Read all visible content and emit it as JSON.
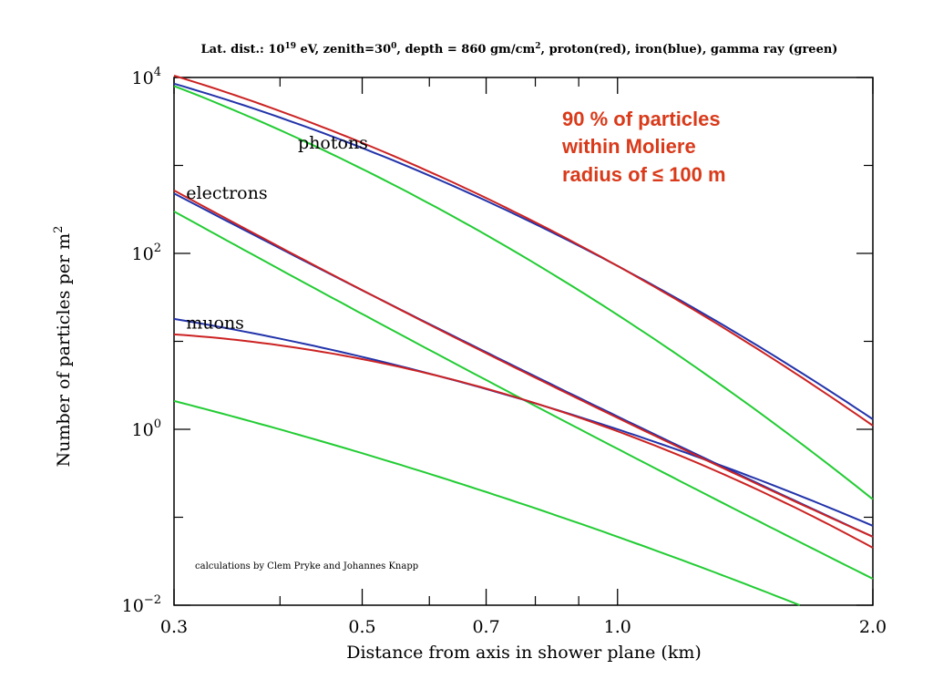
{
  "chart_data": {
    "type": "line",
    "title_parts": {
      "prefix": "Lat. dist.: 10",
      "exp1": "19",
      "mid": " eV, zenith=30",
      "exp2": "0",
      "mid2": ", depth = 860 gm/cm",
      "exp3": "2",
      "suffix": ", proton(red), iron(blue), gamma ray (green)"
    },
    "xlabel": "Distance from axis in shower plane (km)",
    "ylabel": "Number of particles per m",
    "ylabel_sup": "2",
    "x_scale": "log",
    "y_scale": "log",
    "xlim": [
      0.3,
      2.0
    ],
    "ylim": [
      0.01,
      10000
    ],
    "x_ticks": [
      {
        "value": 0.3,
        "label": "0.3"
      },
      {
        "value": 0.5,
        "label": "0.5"
      },
      {
        "value": 0.7,
        "label": "0.7"
      },
      {
        "value": 1.0,
        "label": "1.0"
      },
      {
        "value": 2.0,
        "label": "2.0"
      }
    ],
    "x_minor_ticks": [
      0.4,
      0.6,
      0.8,
      0.9
    ],
    "y_ticks": [
      {
        "value": 0.01,
        "base": "10",
        "exp": "−2"
      },
      {
        "value": 1,
        "base": "10",
        "exp": "0"
      },
      {
        "value": 100,
        "base": "10",
        "exp": "2"
      },
      {
        "value": 10000,
        "base": "10",
        "exp": "4"
      }
    ],
    "y_minor_ticks": [
      0.1,
      10,
      1000
    ],
    "grid": false,
    "legend": "none",
    "colors": {
      "proton": "#cc2222",
      "iron": "#2233aa",
      "gamma": "#22cc33"
    },
    "series": [
      {
        "component": "photons",
        "primary": "proton",
        "x": [
          0.3,
          1.0,
          2.0
        ],
        "y": [
          10500,
          72,
          1.1
        ]
      },
      {
        "component": "photons",
        "primary": "iron",
        "x": [
          0.3,
          1.0,
          2.0
        ],
        "y": [
          8500,
          72,
          1.3
        ]
      },
      {
        "component": "photons",
        "primary": "gamma",
        "x": [
          0.3,
          1.0,
          2.0
        ],
        "y": [
          8000,
          20,
          0.16
        ]
      },
      {
        "component": "electrons",
        "primary": "proton",
        "x": [
          0.3,
          1.0,
          2.0
        ],
        "y": [
          520,
          1.35,
          0.06
        ]
      },
      {
        "component": "electrons",
        "primary": "iron",
        "x": [
          0.3,
          1.0,
          2.0
        ],
        "y": [
          480,
          1.4,
          0.06
        ]
      },
      {
        "component": "electrons",
        "primary": "gamma",
        "x": [
          0.3,
          1.0,
          2.0
        ],
        "y": [
          300,
          0.6,
          0.02
        ]
      },
      {
        "component": "muons",
        "primary": "proton",
        "x": [
          0.3,
          1.0,
          2.0
        ],
        "y": [
          12,
          0.95,
          0.045
        ]
      },
      {
        "component": "muons",
        "primary": "iron",
        "x": [
          0.3,
          1.0,
          2.0
        ],
        "y": [
          18,
          1.0,
          0.08
        ]
      },
      {
        "component": "muons",
        "primary": "gamma",
        "x": [
          0.3,
          1.0,
          1.64
        ],
        "y": [
          2.1,
          0.06,
          0.01
        ]
      }
    ],
    "curve_labels": [
      {
        "text": "photons",
        "x": 0.42,
        "y": 1550
      },
      {
        "text": "electrons",
        "x": 0.31,
        "y": 420
      },
      {
        "text": "muons",
        "x": 0.31,
        "y": 14
      }
    ],
    "annotations": [
      {
        "text": "90 % of particles",
        "color": "#d93a1a"
      },
      {
        "text": "within Moliere",
        "color": "#d93a1a"
      },
      {
        "text": "radius of ≤ 100 m",
        "color": "#d93a1a"
      }
    ],
    "credit": "calculations by Clem Pryke and Johannes Knapp"
  }
}
